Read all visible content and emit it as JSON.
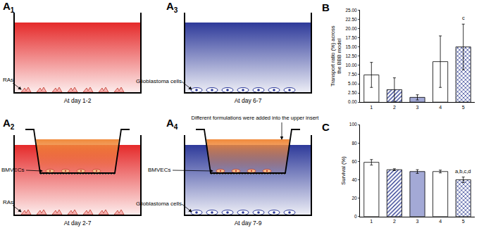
{
  "diagrams": [
    {
      "panel": {
        "letter": "A",
        "subscript": "1"
      },
      "color": "#e52a2a",
      "insert": false,
      "bottom_label": "RAs",
      "bottom_cells": "RAs",
      "caption": "At day 1-2"
    },
    {
      "panel": {
        "letter": "A",
        "subscript": "2"
      },
      "color": "#e52a2a",
      "insert": true,
      "insert_color": "#f08a3c",
      "insert_label": "BMVECs",
      "bottom_label": "RAs",
      "bottom_cells": "RAs",
      "caption": "At day 2-7"
    },
    {
      "panel": {
        "letter": "A",
        "subscript": "3"
      },
      "color": "#2e3a9a",
      "insert": false,
      "bottom_label": "Glioblastoma cells",
      "bottom_cells": "Glioblastoma cells",
      "caption": "At day 6-7"
    },
    {
      "panel": {
        "letter": "A",
        "subscript": "4"
      },
      "color": "#2e3a9a",
      "insert": true,
      "insert_color": "#f08a3c",
      "insert_label": "BMVECs",
      "bottom_label": "Glioblastoma cells",
      "bottom_cells": "Glioblastoma cells",
      "note": "Different formulations were added into the upper insert",
      "caption": "At day 7-9"
    }
  ],
  "chart_data": [
    {
      "panel": "B",
      "type": "bar",
      "y_label": "Transport ratio (%) across\nthe BBB model",
      "categories": [
        "1",
        "2",
        "3",
        "4",
        "5"
      ],
      "values": [
        7.4,
        3.4,
        1.3,
        11.0,
        15.0
      ],
      "errors": [
        3.4,
        3.2,
        0.7,
        7.0,
        6.2
      ],
      "colors": [
        "#ffffff",
        "#2b3990",
        "#a3a9d6",
        "#ffffff",
        "#2b3990"
      ],
      "ylim": [
        0,
        25
      ],
      "yticks": [
        {
          "value": 0,
          "label": "0.00"
        },
        {
          "value": 2.5,
          "label": "2.50"
        },
        {
          "value": 5,
          "label": "5.00"
        },
        {
          "value": 7.5,
          "label": "7.50"
        },
        {
          "value": 10,
          "label": "10.00"
        },
        {
          "value": 12.5,
          "label": "12.50"
        },
        {
          "value": 15,
          "label": "15.00"
        },
        {
          "value": 17.5,
          "label": "17.50"
        },
        {
          "value": 20,
          "label": "20.00"
        },
        {
          "value": 22.5,
          "label": "22.50"
        },
        {
          "value": 25,
          "label": "25.00"
        }
      ],
      "grid": false,
      "annotations": [
        {
          "text": "c",
          "category": "5"
        }
      ]
    },
    {
      "panel": "C",
      "type": "bar",
      "y_label": "Survival (%)",
      "categories": [
        "1",
        "2",
        "3",
        "4",
        "5"
      ],
      "values": [
        59,
        51,
        49,
        49,
        40
      ],
      "errors": [
        3,
        1,
        2,
        1.5,
        3
      ],
      "colors": [
        "#ffffff",
        "#2b3990",
        "#a3a9d6",
        "#ffffff",
        "#2b3990"
      ],
      "ylim": [
        0,
        100
      ],
      "yticks": [
        0,
        20,
        40,
        60,
        80,
        100
      ],
      "grid": false,
      "annotations": [
        {
          "text": "a,b,c,d",
          "category": "5"
        }
      ]
    }
  ]
}
